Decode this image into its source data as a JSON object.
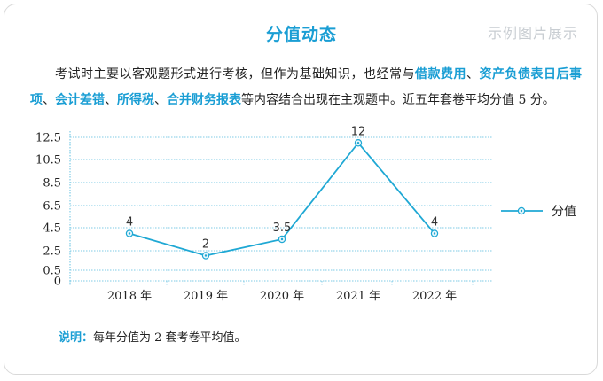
{
  "header": {
    "title": "分值动态",
    "watermark": "示例图片展示"
  },
  "intro": {
    "segments": [
      {
        "text": "考试时主要以客观题形式进行考核，但作为基础知识，也经常与",
        "highlight": false
      },
      {
        "text": "借款费用",
        "highlight": true
      },
      {
        "text": "、",
        "highlight": false
      },
      {
        "text": "资产负债表日后事项",
        "highlight": true
      },
      {
        "text": "、",
        "highlight": false
      },
      {
        "text": "会计差错",
        "highlight": true
      },
      {
        "text": "、",
        "highlight": false
      },
      {
        "text": "所得税",
        "highlight": true
      },
      {
        "text": "、",
        "highlight": false
      },
      {
        "text": "合并财务报表",
        "highlight": true
      },
      {
        "text": "等内容结合出现在主观题中。近五年套卷平均分值 5 分。",
        "highlight": false
      }
    ]
  },
  "chart_data": {
    "type": "line",
    "title": "",
    "xlabel": "",
    "ylabel": "",
    "categories": [
      "2018 年",
      "2019 年",
      "2020 年",
      "2021 年",
      "2022 年"
    ],
    "series": [
      {
        "name": "分值",
        "values": [
          4,
          2,
          3.5,
          12,
          4
        ],
        "labels": [
          "4",
          "2",
          "3.5",
          "12",
          "4"
        ],
        "color": "#1fa8d4"
      }
    ],
    "yticks": [
      "12.5",
      "10.5",
      "8.5",
      "6.5",
      "4.5",
      "2.5",
      "0.5",
      "0"
    ],
    "ylim": [
      0,
      12.5
    ],
    "grid": true,
    "legend_position": "right"
  },
  "note": {
    "label": "说明：",
    "text": "每年分值为 2 套考卷平均值。"
  },
  "colors": {
    "accent": "#1a9ed4",
    "grid": "#7fcbe6",
    "line": "#1fa8d4"
  }
}
